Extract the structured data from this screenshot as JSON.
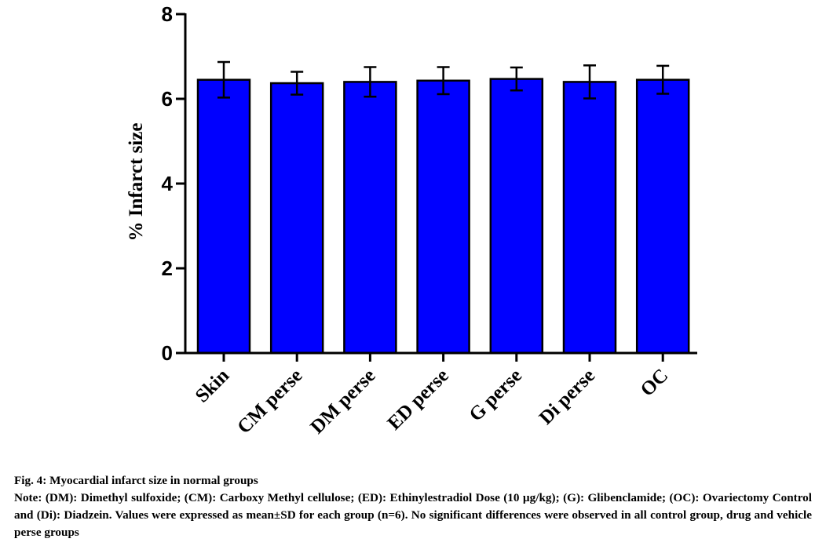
{
  "chart_data": {
    "type": "bar",
    "title": "",
    "xlabel": "",
    "ylabel": "% Infarct size",
    "ylim": [
      0,
      8
    ],
    "yticks": [
      "0",
      "2",
      "4",
      "6",
      "8"
    ],
    "categories": [
      "Skin",
      "CM perse",
      "DM perse",
      "ED perse",
      "G perse",
      "Di perse",
      "OC"
    ],
    "values": [
      6.45,
      6.37,
      6.4,
      6.43,
      6.47,
      6.4,
      6.45
    ],
    "error": [
      0.42,
      0.27,
      0.35,
      0.32,
      0.27,
      0.39,
      0.33
    ],
    "bar_color": "#0000ff",
    "grid": false,
    "legend": "none"
  },
  "caption": {
    "title": "Fig. 4: Myocardial infarct size in normal groups",
    "note": "Note: (DM): Dimethyl sulfoxide; (CM): Carboxy Methyl cellulose; (ED): Ethinylestradiol Dose (10 µg/kg); (G): Glibenclamide; (OC): Ovariectomy Control and (Di): Diadzein. Values were expressed as mean±SD for each group (n=6). No significant differences were observed in all control group, drug and vehicle perse groups"
  }
}
